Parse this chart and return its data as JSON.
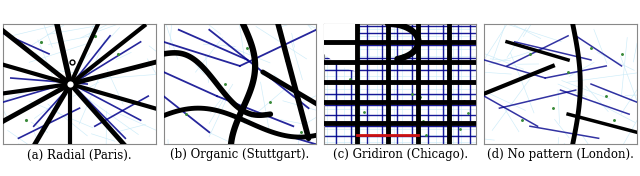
{
  "labels": [
    "(a) Radial (Paris).",
    "(b) Organic (Stuttgart).",
    "(c) Gridiron (Chicago).",
    "(d) No pattern (London)."
  ],
  "background_color": "#ffffff",
  "caption_fontsize": 8.5,
  "figure_width": 6.4,
  "figure_height": 1.76,
  "dpi": 100,
  "colors": {
    "black": "#000000",
    "dark_navy": "#00008b",
    "medium_blue": "#1a35a0",
    "light_cyan": "#a8d8ea",
    "lighter_cyan": "#c8eaf8",
    "green_dot": "#3a8a3a",
    "red": "#cc1111",
    "white": "#ffffff"
  }
}
